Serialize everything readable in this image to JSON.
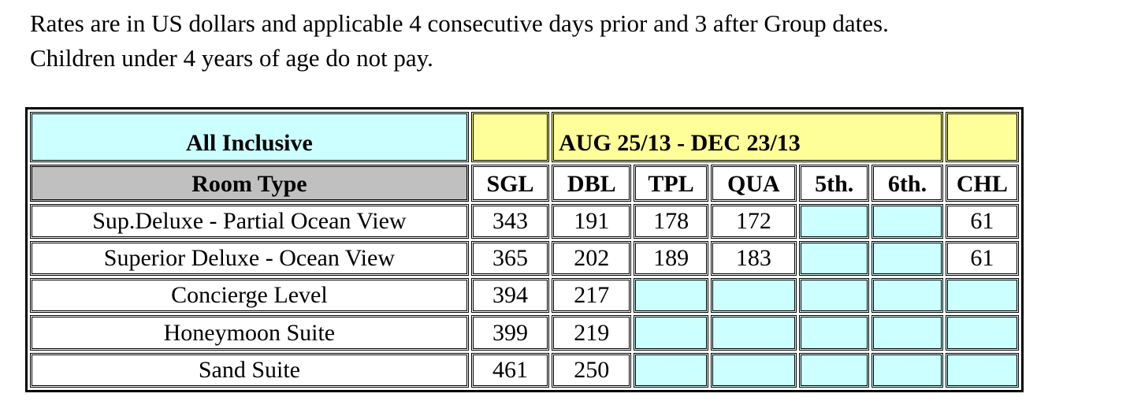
{
  "notes": {
    "line1": "Rates are in US dollars and applicable 4 consecutive days prior and 3 after Group dates.",
    "line2": "Children under 4 years of age do not pay."
  },
  "table": {
    "plan_label": "All Inclusive",
    "date_range": "AUG 25/13 - DEC 23/13",
    "room_type_header": "Room Type",
    "columns": [
      "SGL",
      "DBL",
      "TPL",
      "QUA",
      "5th.",
      "6th.",
      "CHL"
    ],
    "rows": [
      {
        "room": "Sup.Deluxe - Partial Ocean View",
        "sgl": "343",
        "dbl": "191",
        "tpl": "178",
        "qua": "172",
        "fifth": "",
        "sixth": "",
        "chl": "61"
      },
      {
        "room": "Superior Deluxe - Ocean View",
        "sgl": "365",
        "dbl": "202",
        "tpl": "189",
        "qua": "183",
        "fifth": "",
        "sixth": "",
        "chl": "61"
      },
      {
        "room": "Concierge Level",
        "sgl": "394",
        "dbl": "217",
        "tpl": "",
        "qua": "",
        "fifth": "",
        "sixth": "",
        "chl": ""
      },
      {
        "room": "Honeymoon Suite",
        "sgl": "399",
        "dbl": "219",
        "tpl": "",
        "qua": "",
        "fifth": "",
        "sixth": "",
        "chl": ""
      },
      {
        "room": "Sand Suite",
        "sgl": "461",
        "dbl": "250",
        "tpl": "",
        "qua": "",
        "fifth": "",
        "sixth": "",
        "chl": ""
      }
    ]
  },
  "colors": {
    "header_cyan": "#ccffff",
    "header_yellow": "#ffff99",
    "room_type_gray": "#c0c0c0",
    "empty_cell_cyan": "#ccffff"
  }
}
